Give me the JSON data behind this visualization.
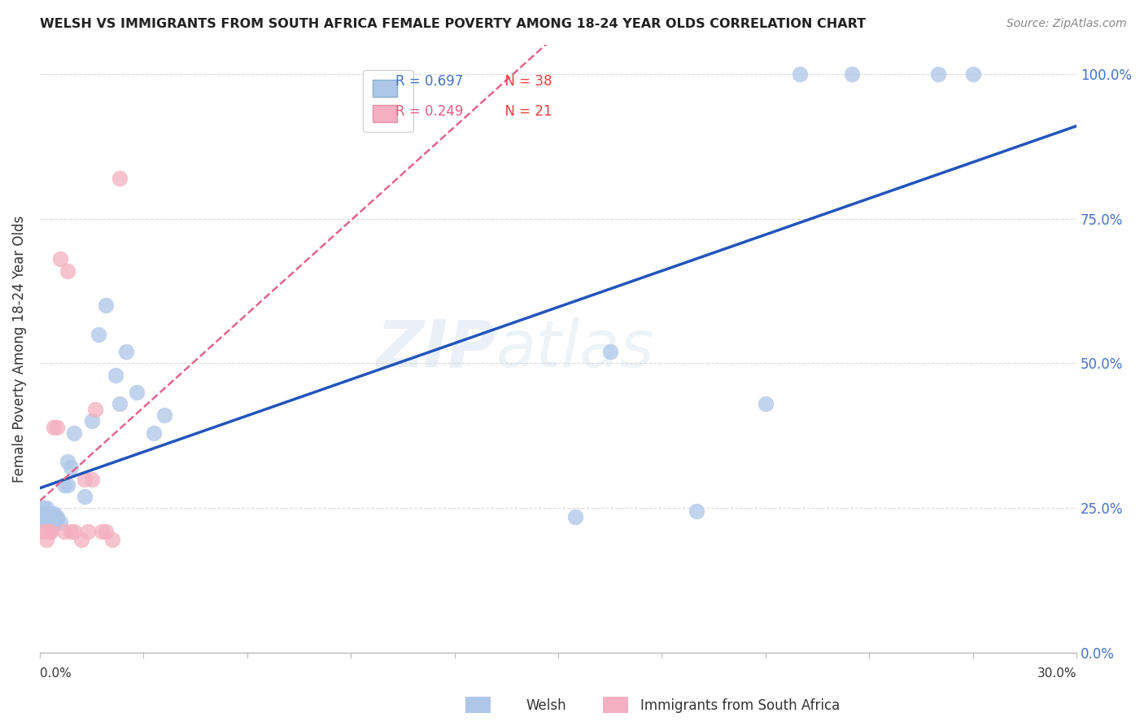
{
  "title": "WELSH VS IMMIGRANTS FROM SOUTH AFRICA FEMALE POVERTY AMONG 18-24 YEAR OLDS CORRELATION CHART",
  "source": "Source: ZipAtlas.com",
  "ylabel": "Female Poverty Among 18-24 Year Olds",
  "xlim": [
    0.0,
    0.3
  ],
  "ylim": [
    0.0,
    1.05
  ],
  "yticks": [
    0.0,
    0.25,
    0.5,
    0.75,
    1.0
  ],
  "ytick_labels": [
    "0.0%",
    "25.0%",
    "50.0%",
    "75.0%",
    "100.0%"
  ],
  "welsh_R": 0.697,
  "welsh_N": 38,
  "sa_R": 0.249,
  "sa_N": 21,
  "welsh_color": "#aec6e8",
  "sa_color": "#f4afc0",
  "trendline_welsh_color": "#2255bb",
  "trendline_sa_color": "#dd6688",
  "background_color": "#ffffff",
  "watermark_zip": "ZIP",
  "watermark_atlas": "atlas",
  "legend_R1_color": "#4472c4",
  "legend_N1_color": "#e84040",
  "legend_R2_color": "#e87090",
  "legend_N2_color": "#e84040",
  "welsh_x": [
    0.001,
    0.001,
    0.001,
    0.002,
    0.002,
    0.002,
    0.003,
    0.003,
    0.003,
    0.004,
    0.004,
    0.004,
    0.005,
    0.005,
    0.006,
    0.007,
    0.008,
    0.008,
    0.009,
    0.01,
    0.013,
    0.015,
    0.017,
    0.019,
    0.022,
    0.023,
    0.025,
    0.028,
    0.033,
    0.036,
    0.155,
    0.165,
    0.19,
    0.21,
    0.22,
    0.235,
    0.26,
    0.27
  ],
  "welsh_y": [
    0.25,
    0.24,
    0.23,
    0.25,
    0.23,
    0.22,
    0.24,
    0.235,
    0.215,
    0.235,
    0.22,
    0.24,
    0.235,
    0.23,
    0.225,
    0.29,
    0.29,
    0.33,
    0.32,
    0.38,
    0.27,
    0.4,
    0.55,
    0.6,
    0.48,
    0.43,
    0.52,
    0.45,
    0.38,
    0.41,
    0.235,
    0.52,
    0.245,
    0.43,
    1.0,
    1.0,
    1.0,
    1.0
  ],
  "sa_x": [
    0.001,
    0.002,
    0.002,
    0.003,
    0.003,
    0.004,
    0.005,
    0.006,
    0.007,
    0.008,
    0.009,
    0.01,
    0.012,
    0.013,
    0.014,
    0.015,
    0.016,
    0.018,
    0.019,
    0.021,
    0.023
  ],
  "sa_y": [
    0.21,
    0.195,
    0.21,
    0.21,
    0.21,
    0.39,
    0.39,
    0.68,
    0.21,
    0.66,
    0.21,
    0.21,
    0.195,
    0.3,
    0.21,
    0.3,
    0.42,
    0.21,
    0.21,
    0.195,
    0.82
  ]
}
